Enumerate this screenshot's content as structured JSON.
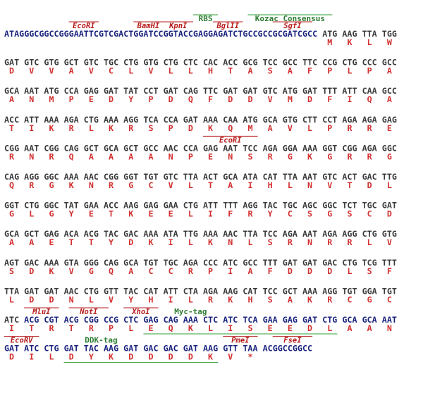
{
  "rows": [
    {
      "leader": "ATAGGGCGGCCGGGAATTCGTCGACTGGATCCGGTACCGAGGAGATCTGCCGCCGCGATCGCC",
      "codons": [
        "ATG",
        "AAG",
        "TTA",
        "TGG"
      ],
      "amino_acids": [
        "M",
        "K",
        "L",
        "W"
      ],
      "sites": [
        "EcoRI",
        "BamHI",
        "KpnI",
        "BglII",
        "SgfI"
      ],
      "features": [
        "RBS",
        "Kozac Consensus"
      ]
    },
    {
      "codons": [
        "GAT",
        "GTC",
        "GTG",
        "GCT",
        "GTC",
        "TGC",
        "CTG",
        "GTG",
        "CTG",
        "CTC",
        "CAC",
        "ACC",
        "GCG",
        "TCC",
        "GCC",
        "TTC",
        "CCG",
        "CTG",
        "CCC",
        "GCC"
      ],
      "amino_acids": [
        "D",
        "V",
        "V",
        "A",
        "V",
        "C",
        "L",
        "V",
        "L",
        "L",
        "H",
        "T",
        "A",
        "S",
        "A",
        "F",
        "P",
        "L",
        "P",
        "A"
      ]
    },
    {
      "codons": [
        "GCA",
        "AAT",
        "ATG",
        "CCA",
        "GAG",
        "GAT",
        "TAT",
        "CCT",
        "GAT",
        "CAG",
        "TTC",
        "GAT",
        "GAT",
        "GTC",
        "ATG",
        "GAT",
        "TTT",
        "ATT",
        "CAA",
        "GCC"
      ],
      "amino_acids": [
        "A",
        "N",
        "M",
        "P",
        "E",
        "D",
        "Y",
        "P",
        "D",
        "Q",
        "F",
        "D",
        "D",
        "V",
        "M",
        "D",
        "F",
        "I",
        "Q",
        "A"
      ]
    },
    {
      "codons": [
        "ACC",
        "ATT",
        "AAA",
        "AGA",
        "CTG",
        "AAA",
        "AGG",
        "TCA",
        "CCA",
        "GAT",
        "AAA",
        "CAA",
        "ATG",
        "GCA",
        "GTG",
        "CTT",
        "CCT",
        "AGA",
        "AGA",
        "GAG"
      ],
      "amino_acids": [
        "T",
        "I",
        "K",
        "R",
        "L",
        "K",
        "R",
        "S",
        "P",
        "D",
        "K",
        "Q",
        "M",
        "A",
        "V",
        "L",
        "P",
        "R",
        "R",
        "E"
      ]
    },
    {
      "codons": [
        "CGG",
        "AAT",
        "CGG",
        "CAG",
        "GCT",
        "GCA",
        "GCT",
        "GCC",
        "AAC",
        "CCA",
        "GAG",
        "AAT",
        "TCC",
        "AGA",
        "GGA",
        "AAA",
        "GGT",
        "CGG",
        "AGA",
        "GGC"
      ],
      "amino_acids": [
        "R",
        "N",
        "R",
        "Q",
        "A",
        "A",
        "A",
        "A",
        "N",
        "P",
        "E",
        "N",
        "S",
        "R",
        "G",
        "K",
        "G",
        "R",
        "R",
        "G"
      ],
      "sites": [
        "EcoRI"
      ]
    },
    {
      "codons": [
        "CAG",
        "AGG",
        "GGC",
        "AAA",
        "AAC",
        "CGG",
        "GGT",
        "TGT",
        "GTC",
        "TTA",
        "ACT",
        "GCA",
        "ATA",
        "CAT",
        "TTA",
        "AAT",
        "GTC",
        "ACT",
        "GAC",
        "TTG"
      ],
      "amino_acids": [
        "Q",
        "R",
        "G",
        "K",
        "N",
        "R",
        "G",
        "C",
        "V",
        "L",
        "T",
        "A",
        "I",
        "H",
        "L",
        "N",
        "V",
        "T",
        "D",
        "L"
      ]
    },
    {
      "codons": [
        "GGT",
        "CTG",
        "GGC",
        "TAT",
        "GAA",
        "ACC",
        "AAG",
        "GAG",
        "GAA",
        "CTG",
        "ATT",
        "TTT",
        "AGG",
        "TAC",
        "TGC",
        "AGC",
        "GGC",
        "TCT",
        "TGC",
        "GAT"
      ],
      "amino_acids": [
        "G",
        "L",
        "G",
        "Y",
        "E",
        "T",
        "K",
        "E",
        "E",
        "L",
        "I",
        "F",
        "R",
        "Y",
        "C",
        "S",
        "G",
        "S",
        "C",
        "D"
      ]
    },
    {
      "codons": [
        "GCA",
        "GCT",
        "GAG",
        "ACA",
        "ACG",
        "TAC",
        "GAC",
        "AAA",
        "ATA",
        "TTG",
        "AAA",
        "AAC",
        "TTA",
        "TCC",
        "AGA",
        "AAT",
        "AGA",
        "AGG",
        "CTG",
        "GTG"
      ],
      "amino_acids": [
        "A",
        "A",
        "E",
        "T",
        "T",
        "Y",
        "D",
        "K",
        "I",
        "L",
        "K",
        "N",
        "L",
        "S",
        "R",
        "N",
        "R",
        "R",
        "L",
        "V"
      ]
    },
    {
      "codons": [
        "AGT",
        "GAC",
        "AAA",
        "GTA",
        "GGG",
        "CAG",
        "GCA",
        "TGT",
        "TGC",
        "AGA",
        "CCC",
        "ATC",
        "GCC",
        "TTT",
        "GAT",
        "GAT",
        "GAC",
        "CTG",
        "TCG",
        "TTT"
      ],
      "amino_acids": [
        "S",
        "D",
        "K",
        "V",
        "G",
        "Q",
        "A",
        "C",
        "C",
        "R",
        "P",
        "I",
        "A",
        "F",
        "D",
        "D",
        "D",
        "L",
        "S",
        "F"
      ]
    },
    {
      "codons": [
        "TTA",
        "GAT",
        "GAT",
        "AAC",
        "CTG",
        "GTT",
        "TAC",
        "CAT",
        "ATT",
        "CTA",
        "AGA",
        "AAG",
        "CAT",
        "TCC",
        "GCT",
        "AAA",
        "AGG",
        "TGT",
        "GGA",
        "TGT"
      ],
      "amino_acids": [
        "L",
        "D",
        "D",
        "N",
        "L",
        "V",
        "Y",
        "H",
        "I",
        "L",
        "R",
        "K",
        "H",
        "S",
        "A",
        "K",
        "R",
        "C",
        "G",
        "C"
      ]
    },
    {
      "codons": [
        "ATC",
        "ACG",
        "CGT",
        "ACG",
        "CGG",
        "CCG",
        "CTC",
        "GAG",
        "CAG",
        "AAA",
        "CTC",
        "ATC",
        "TCA",
        "GAA",
        "GAG",
        "GAT",
        "CTG",
        "GCA",
        "GCA",
        "AAT"
      ],
      "amino_acids": [
        "I",
        "T",
        "R",
        "T",
        "R",
        "P",
        "L",
        "E",
        "Q",
        "K",
        "L",
        "I",
        "S",
        "E",
        "E",
        "D",
        "L",
        "A",
        "A",
        "N"
      ],
      "sites": [
        "MluI",
        "NotI",
        "XhoI"
      ],
      "features": [
        "Myc-tag"
      ]
    },
    {
      "codons": [
        "GAT",
        "ATC",
        "CTG",
        "GAT",
        "TAC",
        "AAG",
        "GAT",
        "GAC",
        "GAC",
        "GAT",
        "AAG",
        "GTT",
        "TAA"
      ],
      "amino_acids": [
        "D",
        "I",
        "L",
        "D",
        "Y",
        "K",
        "D",
        "D",
        "D",
        "D",
        "K",
        "V",
        "*"
      ],
      "tail": "ACGGCCGGCC",
      "sites": [
        "EcoRV",
        "PmeI",
        "FseI"
      ],
      "features": [
        "DDK-tag"
      ]
    }
  ]
}
